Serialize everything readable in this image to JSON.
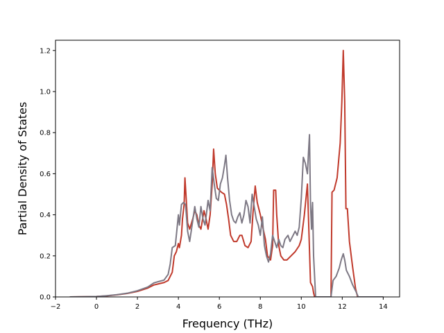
{
  "chart_data": {
    "type": "line",
    "title": "",
    "xlabel": "Frequency (THz)",
    "ylabel": "Partial Density of States",
    "xlim": [
      -2,
      14.8
    ],
    "ylim": [
      0,
      1.25
    ],
    "xticks": [
      -2,
      0,
      2,
      4,
      6,
      8,
      10,
      12,
      14
    ],
    "yticks": [
      0.0,
      0.2,
      0.4,
      0.6,
      0.8,
      1.0,
      1.2
    ],
    "xtick_labels": [
      "−2",
      "0",
      "2",
      "4",
      "6",
      "8",
      "10",
      "12",
      "14"
    ],
    "ytick_labels": [
      "0.0",
      "0.2",
      "0.4",
      "0.6",
      "0.8",
      "1.0",
      "1.2"
    ],
    "grid": false,
    "legend": "none",
    "series": [
      {
        "color": "#c0392b",
        "points": [
          [
            -1.3,
            0
          ],
          [
            0,
            0.002
          ],
          [
            0.5,
            0.005
          ],
          [
            1.0,
            0.01
          ],
          [
            1.5,
            0.017
          ],
          [
            2.0,
            0.027
          ],
          [
            2.5,
            0.043
          ],
          [
            2.8,
            0.058
          ],
          [
            3.0,
            0.063
          ],
          [
            3.3,
            0.07
          ],
          [
            3.5,
            0.08
          ],
          [
            3.7,
            0.12
          ],
          [
            3.8,
            0.2
          ],
          [
            3.9,
            0.22
          ],
          [
            4.0,
            0.26
          ],
          [
            4.05,
            0.24
          ],
          [
            4.15,
            0.3
          ],
          [
            4.2,
            0.38
          ],
          [
            4.28,
            0.45
          ],
          [
            4.32,
            0.58
          ],
          [
            4.38,
            0.48
          ],
          [
            4.45,
            0.36
          ],
          [
            4.55,
            0.33
          ],
          [
            4.7,
            0.38
          ],
          [
            4.8,
            0.42
          ],
          [
            4.9,
            0.4
          ],
          [
            5.0,
            0.35
          ],
          [
            5.1,
            0.33
          ],
          [
            5.25,
            0.42
          ],
          [
            5.35,
            0.38
          ],
          [
            5.45,
            0.33
          ],
          [
            5.55,
            0.4
          ],
          [
            5.65,
            0.55
          ],
          [
            5.72,
            0.72
          ],
          [
            5.8,
            0.6
          ],
          [
            5.9,
            0.53
          ],
          [
            6.1,
            0.51
          ],
          [
            6.25,
            0.5
          ],
          [
            6.35,
            0.45
          ],
          [
            6.45,
            0.38
          ],
          [
            6.55,
            0.3
          ],
          [
            6.7,
            0.27
          ],
          [
            6.85,
            0.27
          ],
          [
            7.0,
            0.3
          ],
          [
            7.1,
            0.3
          ],
          [
            7.25,
            0.25
          ],
          [
            7.4,
            0.24
          ],
          [
            7.55,
            0.27
          ],
          [
            7.65,
            0.42
          ],
          [
            7.75,
            0.54
          ],
          [
            7.85,
            0.46
          ],
          [
            8.0,
            0.4
          ],
          [
            8.1,
            0.35
          ],
          [
            8.25,
            0.28
          ],
          [
            8.35,
            0.2
          ],
          [
            8.5,
            0.18
          ],
          [
            8.6,
            0.25
          ],
          [
            8.65,
            0.52
          ],
          [
            8.75,
            0.52
          ],
          [
            8.8,
            0.4
          ],
          [
            8.9,
            0.25
          ],
          [
            9.0,
            0.2
          ],
          [
            9.15,
            0.18
          ],
          [
            9.3,
            0.18
          ],
          [
            9.5,
            0.2
          ],
          [
            9.7,
            0.22
          ],
          [
            9.9,
            0.25
          ],
          [
            10.0,
            0.28
          ],
          [
            10.15,
            0.4
          ],
          [
            10.3,
            0.55
          ],
          [
            10.45,
            0.07
          ],
          [
            10.55,
            0.05
          ],
          [
            10.6,
            0.02
          ],
          [
            10.65,
            0
          ],
          [
            11.45,
            0
          ],
          [
            11.5,
            0.51
          ],
          [
            11.6,
            0.52
          ],
          [
            11.75,
            0.58
          ],
          [
            11.9,
            0.75
          ],
          [
            11.98,
            0.95
          ],
          [
            12.05,
            1.2
          ],
          [
            12.12,
            0.95
          ],
          [
            12.18,
            0.43
          ],
          [
            12.25,
            0.43
          ],
          [
            12.35,
            0.27
          ],
          [
            12.5,
            0.15
          ],
          [
            12.65,
            0.04
          ],
          [
            12.75,
            0
          ],
          [
            14.0,
            0
          ]
        ]
      },
      {
        "color": "#7d7884",
        "points": [
          [
            -1.3,
            0
          ],
          [
            0,
            0.002
          ],
          [
            0.5,
            0.006
          ],
          [
            1.0,
            0.011
          ],
          [
            1.5,
            0.018
          ],
          [
            2.0,
            0.03
          ],
          [
            2.5,
            0.048
          ],
          [
            2.8,
            0.068
          ],
          [
            3.0,
            0.074
          ],
          [
            3.3,
            0.082
          ],
          [
            3.5,
            0.11
          ],
          [
            3.6,
            0.16
          ],
          [
            3.7,
            0.24
          ],
          [
            3.85,
            0.25
          ],
          [
            3.95,
            0.35
          ],
          [
            4.0,
            0.4
          ],
          [
            4.05,
            0.35
          ],
          [
            4.15,
            0.45
          ],
          [
            4.25,
            0.46
          ],
          [
            4.35,
            0.45
          ],
          [
            4.45,
            0.32
          ],
          [
            4.55,
            0.27
          ],
          [
            4.7,
            0.37
          ],
          [
            4.8,
            0.44
          ],
          [
            4.9,
            0.38
          ],
          [
            5.0,
            0.34
          ],
          [
            5.1,
            0.44
          ],
          [
            5.2,
            0.38
          ],
          [
            5.3,
            0.35
          ],
          [
            5.45,
            0.47
          ],
          [
            5.55,
            0.42
          ],
          [
            5.65,
            0.63
          ],
          [
            5.75,
            0.55
          ],
          [
            5.85,
            0.48
          ],
          [
            5.95,
            0.47
          ],
          [
            6.05,
            0.55
          ],
          [
            6.15,
            0.58
          ],
          [
            6.25,
            0.64
          ],
          [
            6.32,
            0.69
          ],
          [
            6.4,
            0.58
          ],
          [
            6.5,
            0.47
          ],
          [
            6.6,
            0.4
          ],
          [
            6.7,
            0.37
          ],
          [
            6.8,
            0.36
          ],
          [
            6.9,
            0.39
          ],
          [
            7.0,
            0.41
          ],
          [
            7.1,
            0.36
          ],
          [
            7.2,
            0.4
          ],
          [
            7.3,
            0.47
          ],
          [
            7.4,
            0.44
          ],
          [
            7.5,
            0.36
          ],
          [
            7.6,
            0.5
          ],
          [
            7.7,
            0.44
          ],
          [
            7.8,
            0.38
          ],
          [
            7.9,
            0.35
          ],
          [
            8.0,
            0.3
          ],
          [
            8.1,
            0.39
          ],
          [
            8.2,
            0.25
          ],
          [
            8.3,
            0.2
          ],
          [
            8.4,
            0.17
          ],
          [
            8.5,
            0.21
          ],
          [
            8.6,
            0.3
          ],
          [
            8.7,
            0.27
          ],
          [
            8.8,
            0.24
          ],
          [
            8.9,
            0.28
          ],
          [
            9.0,
            0.25
          ],
          [
            9.1,
            0.24
          ],
          [
            9.2,
            0.28
          ],
          [
            9.35,
            0.3
          ],
          [
            9.45,
            0.27
          ],
          [
            9.55,
            0.29
          ],
          [
            9.7,
            0.32
          ],
          [
            9.8,
            0.3
          ],
          [
            9.9,
            0.34
          ],
          [
            10.0,
            0.48
          ],
          [
            10.1,
            0.68
          ],
          [
            10.2,
            0.65
          ],
          [
            10.3,
            0.6
          ],
          [
            10.35,
            0.7
          ],
          [
            10.4,
            0.79
          ],
          [
            10.45,
            0.45
          ],
          [
            10.5,
            0.33
          ],
          [
            10.55,
            0.46
          ],
          [
            10.6,
            0.2
          ],
          [
            10.7,
            0
          ],
          [
            11.45,
            0
          ],
          [
            11.55,
            0.08
          ],
          [
            11.7,
            0.1
          ],
          [
            11.85,
            0.14
          ],
          [
            11.95,
            0.18
          ],
          [
            12.05,
            0.21
          ],
          [
            12.12,
            0.18
          ],
          [
            12.2,
            0.13
          ],
          [
            12.35,
            0.1
          ],
          [
            12.5,
            0.06
          ],
          [
            12.7,
            0.02
          ],
          [
            12.78,
            0
          ],
          [
            14.0,
            0
          ]
        ]
      }
    ]
  }
}
